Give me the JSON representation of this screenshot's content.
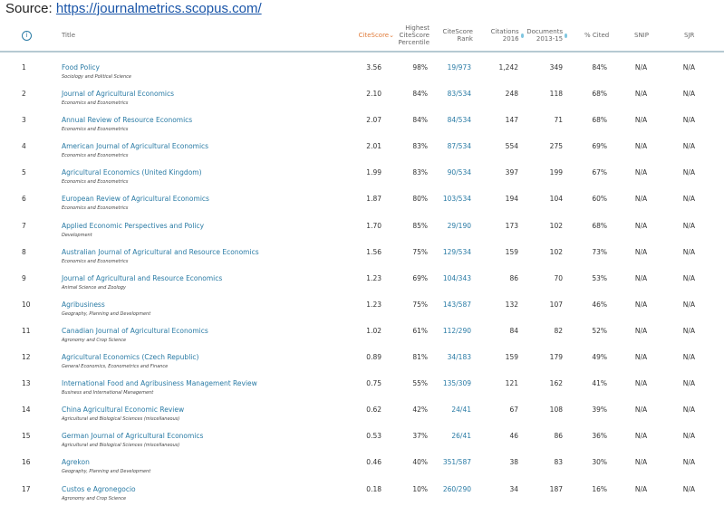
{
  "source": {
    "label": "Source:",
    "url": "https://journalmetrics.scopus.com/"
  },
  "header": {
    "info_icon": "i",
    "title": "Title",
    "citescore": "CiteScore",
    "highest_percentile": "Highest CiteScore Percentile",
    "rank": "CiteScore Rank",
    "citations": "Citations 2016",
    "documents": "Documents 2013-15",
    "cited": "% Cited",
    "snip": "SNIP",
    "sjr": "SJR",
    "sort_icon": "chevron-down-icon",
    "accent": "#e07b3a",
    "link_color": "#2a7ba5"
  },
  "rows": [
    {
      "n": "1",
      "title": "Food Policy",
      "subject": "Sociology and Political Science",
      "cs": "3.56",
      "pct": "98%",
      "rank": "19/973",
      "cit": "1,242",
      "doc": "349",
      "cited": "84%",
      "snip": "N/A",
      "sjr": "N/A"
    },
    {
      "n": "2",
      "title": "Journal of Agricultural Economics",
      "subject": "Economics and Econometrics",
      "cs": "2.10",
      "pct": "84%",
      "rank": "83/534",
      "cit": "248",
      "doc": "118",
      "cited": "68%",
      "snip": "N/A",
      "sjr": "N/A"
    },
    {
      "n": "3",
      "title": "Annual Review of Resource Economics",
      "subject": "Economics and Econometrics",
      "cs": "2.07",
      "pct": "84%",
      "rank": "84/534",
      "cit": "147",
      "doc": "71",
      "cited": "68%",
      "snip": "N/A",
      "sjr": "N/A"
    },
    {
      "n": "4",
      "title": "American Journal of Agricultural Economics",
      "subject": "Economics and Econometrics",
      "cs": "2.01",
      "pct": "83%",
      "rank": "87/534",
      "cit": "554",
      "doc": "275",
      "cited": "69%",
      "snip": "N/A",
      "sjr": "N/A"
    },
    {
      "n": "5",
      "title": "Agricultural Economics (United Kingdom)",
      "subject": "Economics and Econometrics",
      "cs": "1.99",
      "pct": "83%",
      "rank": "90/534",
      "cit": "397",
      "doc": "199",
      "cited": "67%",
      "snip": "N/A",
      "sjr": "N/A"
    },
    {
      "n": "6",
      "title": "European Review of Agricultural Economics",
      "subject": "Economics and Econometrics",
      "cs": "1.87",
      "pct": "80%",
      "rank": "103/534",
      "cit": "194",
      "doc": "104",
      "cited": "60%",
      "snip": "N/A",
      "sjr": "N/A"
    },
    {
      "n": "7",
      "title": "Applied Economic Perspectives and Policy",
      "subject": "Development",
      "cs": "1.70",
      "pct": "85%",
      "rank": "29/190",
      "cit": "173",
      "doc": "102",
      "cited": "68%",
      "snip": "N/A",
      "sjr": "N/A"
    },
    {
      "n": "8",
      "title": "Australian Journal of Agricultural and Resource Economics",
      "subject": "Economics and Econometrics",
      "cs": "1.56",
      "pct": "75%",
      "rank": "129/534",
      "cit": "159",
      "doc": "102",
      "cited": "73%",
      "snip": "N/A",
      "sjr": "N/A"
    },
    {
      "n": "9",
      "title": "Journal of Agricultural and Resource Economics",
      "subject": "Animal Science and Zoology",
      "cs": "1.23",
      "pct": "69%",
      "rank": "104/343",
      "cit": "86",
      "doc": "70",
      "cited": "53%",
      "snip": "N/A",
      "sjr": "N/A"
    },
    {
      "n": "10",
      "title": "Agribusiness",
      "subject": "Geography, Planning and Development",
      "cs": "1.23",
      "pct": "75%",
      "rank": "143/587",
      "cit": "132",
      "doc": "107",
      "cited": "46%",
      "snip": "N/A",
      "sjr": "N/A"
    },
    {
      "n": "11",
      "title": "Canadian Journal of Agricultural Economics",
      "subject": "Agronomy and Crop Science",
      "cs": "1.02",
      "pct": "61%",
      "rank": "112/290",
      "cit": "84",
      "doc": "82",
      "cited": "52%",
      "snip": "N/A",
      "sjr": "N/A"
    },
    {
      "n": "12",
      "title": "Agricultural Economics (Czech Republic)",
      "subject": "General Economics, Econometrics and Finance",
      "cs": "0.89",
      "pct": "81%",
      "rank": "34/183",
      "cit": "159",
      "doc": "179",
      "cited": "49%",
      "snip": "N/A",
      "sjr": "N/A"
    },
    {
      "n": "13",
      "title": "International Food and Agribusiness Management Review",
      "subject": "Business and International Management",
      "cs": "0.75",
      "pct": "55%",
      "rank": "135/309",
      "cit": "121",
      "doc": "162",
      "cited": "41%",
      "snip": "N/A",
      "sjr": "N/A"
    },
    {
      "n": "14",
      "title": "China Agricultural Economic Review",
      "subject": "Agricultural and Biological Sciences (miscellaneous)",
      "cs": "0.62",
      "pct": "42%",
      "rank": "24/41",
      "cit": "67",
      "doc": "108",
      "cited": "39%",
      "snip": "N/A",
      "sjr": "N/A"
    },
    {
      "n": "15",
      "title": "German Journal of Agricultural Economics",
      "subject": "Agricultural and Biological Sciences (miscellaneous)",
      "cs": "0.53",
      "pct": "37%",
      "rank": "26/41",
      "cit": "46",
      "doc": "86",
      "cited": "36%",
      "snip": "N/A",
      "sjr": "N/A"
    },
    {
      "n": "16",
      "title": "Agrekon",
      "subject": "Geography, Planning and Development",
      "cs": "0.46",
      "pct": "40%",
      "rank": "351/587",
      "cit": "38",
      "doc": "83",
      "cited": "30%",
      "snip": "N/A",
      "sjr": "N/A"
    },
    {
      "n": "17",
      "title": "Custos e Agronegocio",
      "subject": "Agronomy and Crop Science",
      "cs": "0.18",
      "pct": "10%",
      "rank": "260/290",
      "cit": "34",
      "doc": "187",
      "cited": "16%",
      "snip": "N/A",
      "sjr": "N/A"
    }
  ]
}
